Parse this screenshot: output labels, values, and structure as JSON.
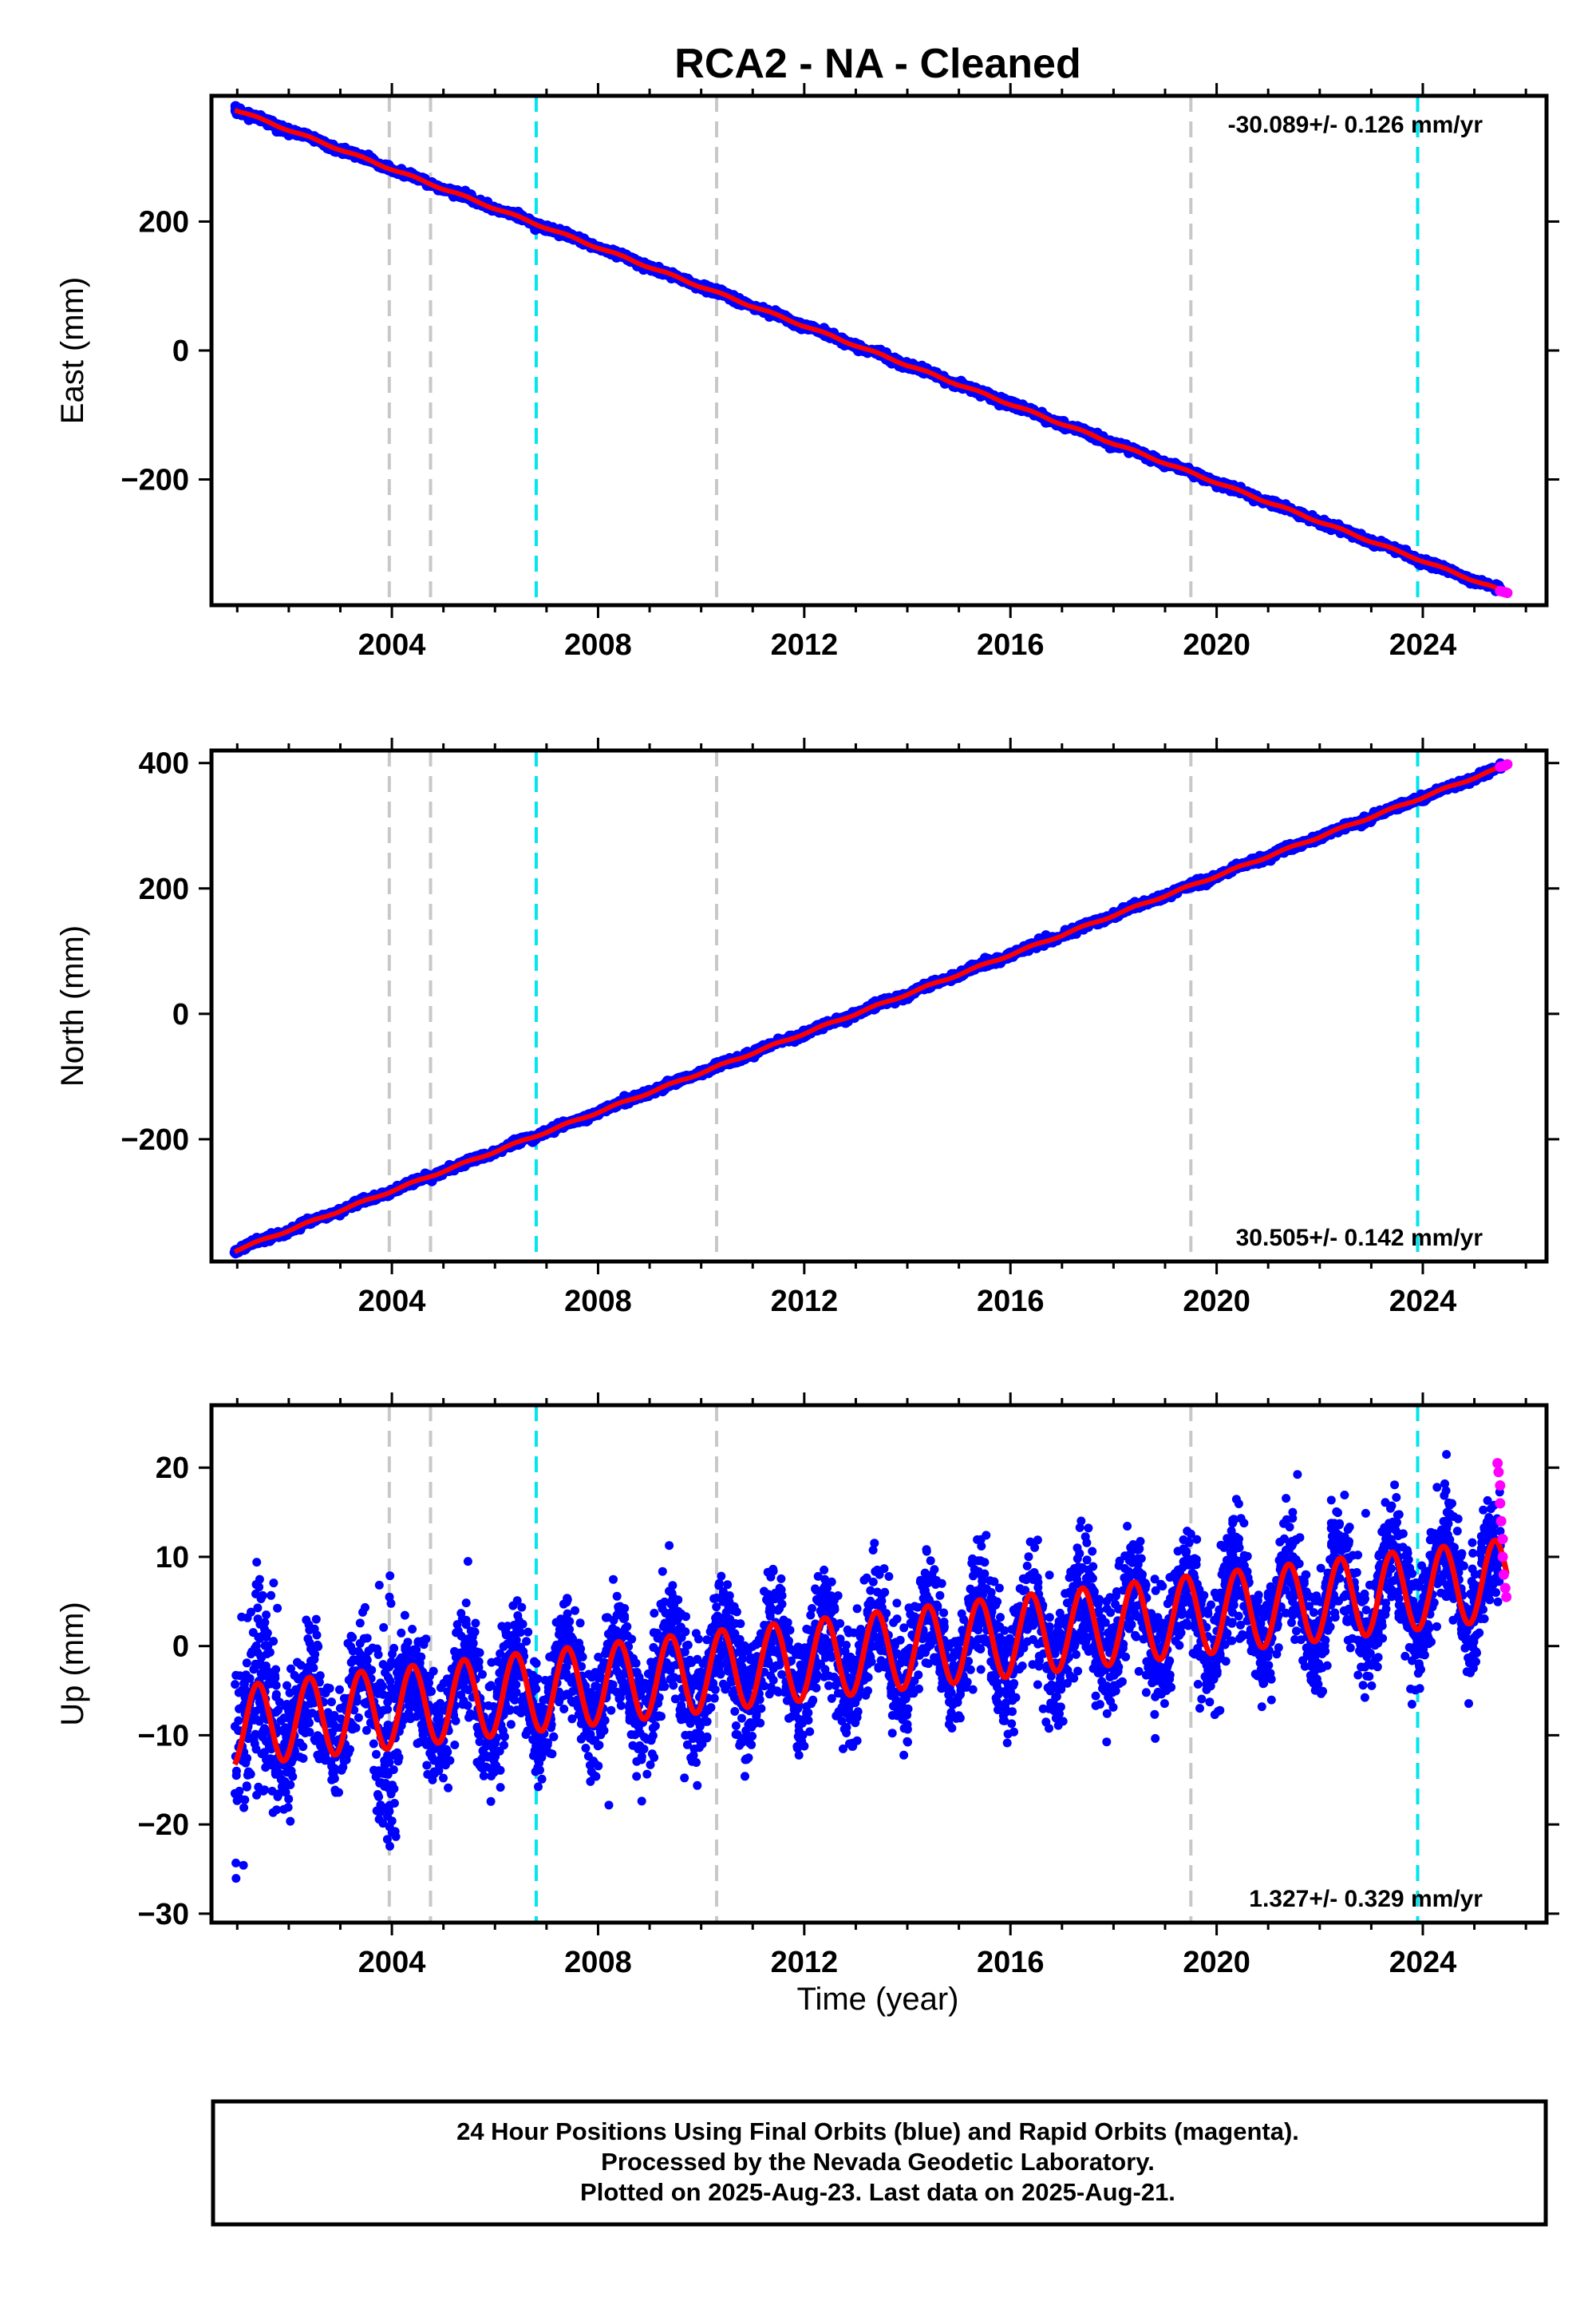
{
  "title": "RCA2  - NA - Cleaned",
  "xlabel": "Time (year)",
  "footer": [
    "24 Hour Positions Using Final Orbits (blue) and Rapid Orbits (magenta).",
    "Processed by the Nevada Geodetic Laboratory.",
    "Plotted on 2025-Aug-23. Last data on 2025-Aug-21."
  ],
  "colors": {
    "final_orbits": "#0000ff",
    "rapid_orbits": "#ff00ff",
    "model_fit": "#ff0000",
    "equipment_change": "#c8c8c8",
    "earthquake": "#00e5ee"
  },
  "chart_data": [
    {
      "type": "scatter",
      "panel": "east",
      "ylabel": "East (mm)",
      "xlim": [
        2000.5,
        2026.4
      ],
      "ylim": [
        -395,
        395
      ],
      "xticks": [
        2004,
        2008,
        2012,
        2016,
        2020,
        2024
      ],
      "yticks": [
        -200,
        0,
        200
      ],
      "grid": false,
      "rate_label": "-30.089+/- 0.126 mm/yr",
      "rate_position": "top-right",
      "rate_mm_per_yr": -30.089,
      "rate_sigma": 0.126,
      "x_start": 2000.95,
      "x_end": 2025.64,
      "y_at_start": 374,
      "y_at_end": -376,
      "seasonal_amplitude": 1.5,
      "noise_sd": 2.5,
      "rapid_points": [
        {
          "x": 2025.5,
          "y": -373
        },
        {
          "x": 2025.55,
          "y": -374
        },
        {
          "x": 2025.6,
          "y": -375
        },
        {
          "x": 2025.64,
          "y": -376
        }
      ],
      "vlines_gray": [
        2003.95,
        2004.75,
        2010.3,
        2019.5
      ],
      "vlines_cyan": [
        2006.8,
        2023.9
      ],
      "series": [
        {
          "name": "Final Orbits",
          "color": "blue",
          "kind": "points"
        },
        {
          "name": "Rapid Orbits",
          "color": "magenta",
          "kind": "points"
        }
      ]
    },
    {
      "type": "scatter",
      "panel": "north",
      "ylabel": "North (mm)",
      "xlim": [
        2000.5,
        2026.4
      ],
      "ylim": [
        -395,
        420
      ],
      "xticks": [
        2004,
        2008,
        2012,
        2016,
        2020,
        2024
      ],
      "yticks": [
        -200,
        0,
        200,
        400
      ],
      "grid": false,
      "rate_label": "30.505+/- 0.142 mm/yr",
      "rate_position": "bottom-right",
      "rate_mm_per_yr": 30.505,
      "rate_sigma": 0.142,
      "x_start": 2000.95,
      "x_end": 2025.64,
      "y_at_start": -378,
      "y_at_end": 397,
      "seasonal_amplitude": 1.5,
      "noise_sd": 2.5,
      "rapid_points": [
        {
          "x": 2025.5,
          "y": 394
        },
        {
          "x": 2025.55,
          "y": 395
        },
        {
          "x": 2025.6,
          "y": 396
        },
        {
          "x": 2025.64,
          "y": 398
        }
      ],
      "vlines_gray": [
        2003.95,
        2004.75,
        2010.3,
        2019.5
      ],
      "vlines_cyan": [
        2006.8,
        2023.9
      ],
      "series": [
        {
          "name": "Final Orbits",
          "color": "blue",
          "kind": "points"
        },
        {
          "name": "Rapid Orbits",
          "color": "magenta",
          "kind": "points"
        }
      ]
    },
    {
      "type": "scatter",
      "panel": "up",
      "ylabel": "Up (mm)",
      "xlim": [
        2000.5,
        2026.4
      ],
      "ylim": [
        -31,
        27
      ],
      "xticks": [
        2004,
        2008,
        2012,
        2016,
        2020,
        2024
      ],
      "yticks": [
        -30,
        -20,
        -10,
        0,
        10,
        20
      ],
      "grid": false,
      "rate_label": "1.327+/- 0.329 mm/yr",
      "rate_position": "bottom-right",
      "rate_mm_per_yr": 1.327,
      "rate_sigma": 0.329,
      "x_start": 2000.95,
      "x_end": 2025.64,
      "y_at_start": -9,
      "y_at_end": 7.5,
      "seasonal_amplitude": 4.5,
      "noise_sd": 3.2,
      "rapid_points": [
        {
          "x": 2025.45,
          "y": 20.5
        },
        {
          "x": 2025.47,
          "y": 19.5
        },
        {
          "x": 2025.5,
          "y": 18
        },
        {
          "x": 2025.5,
          "y": 16
        },
        {
          "x": 2025.52,
          "y": 14
        },
        {
          "x": 2025.55,
          "y": 12
        },
        {
          "x": 2025.55,
          "y": 10
        },
        {
          "x": 2025.57,
          "y": 8
        },
        {
          "x": 2025.6,
          "y": 6.5
        },
        {
          "x": 2025.62,
          "y": 5.5
        }
      ],
      "vlines_gray": [
        2003.95,
        2004.75,
        2010.3,
        2019.5
      ],
      "vlines_cyan": [
        2006.8,
        2023.9
      ],
      "series": [
        {
          "name": "Final Orbits",
          "color": "blue",
          "kind": "points"
        },
        {
          "name": "Rapid Orbits",
          "color": "magenta",
          "kind": "points"
        }
      ]
    }
  ]
}
